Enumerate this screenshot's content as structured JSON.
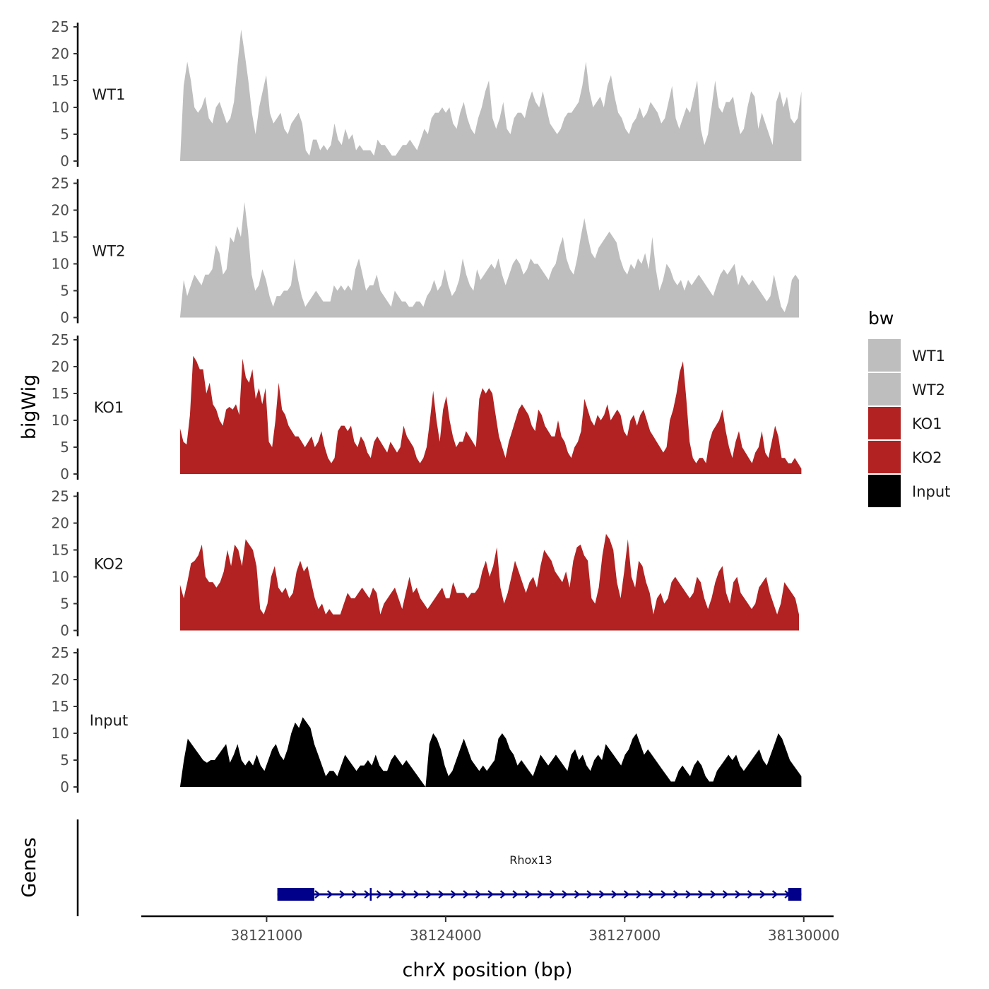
{
  "chart_data": {
    "type": "area",
    "chromosome": "chrX",
    "ylabel": "bigWig",
    "xlabel": "chrX position (bp)",
    "ylim": [
      0,
      25
    ],
    "yticks": [
      0,
      5,
      10,
      15,
      20,
      25
    ],
    "ytick_labels": [
      "0",
      "5",
      "10",
      "15",
      "20",
      "25"
    ],
    "xlim": [
      38118900,
      38130500
    ],
    "xticks": [
      38121000,
      38124000,
      38127000,
      38130000
    ],
    "xtick_labels": [
      "38121000",
      "38124000",
      "38127000",
      "38130000"
    ],
    "legend": {
      "title": "bw",
      "placement": "right",
      "entries": [
        {
          "label": "WT1",
          "color": "#bebebe"
        },
        {
          "label": "WT2",
          "color": "#bebebe"
        },
        {
          "label": "KO1",
          "color": "#b22222"
        },
        {
          "label": "KO2",
          "color": "#b22222"
        },
        {
          "label": "Input",
          "color": "#000000"
        }
      ]
    },
    "series": [
      {
        "name": "WT1",
        "color": "#bebebe",
        "x_start": 38119550,
        "x_end": 38129960,
        "values": [
          0,
          14,
          18.5,
          15,
          10,
          9,
          10,
          12,
          8,
          7,
          10,
          11,
          9,
          7,
          8,
          11,
          18,
          24.5,
          20,
          15,
          9,
          5,
          10,
          13,
          16,
          9,
          7,
          8,
          9,
          6,
          5,
          7,
          8,
          9,
          7,
          2,
          1,
          4,
          4,
          2,
          3,
          2,
          3,
          7,
          4,
          3,
          6,
          4,
          5,
          2,
          3,
          2,
          2,
          2,
          1,
          4,
          3,
          3,
          2,
          1,
          1,
          2,
          3,
          3,
          4,
          3,
          2,
          4,
          6,
          5,
          8,
          9,
          9,
          10,
          9,
          10,
          7,
          6,
          9,
          11,
          8,
          6,
          5,
          8,
          10,
          13,
          15,
          8,
          6,
          8,
          11,
          6,
          5,
          8,
          9,
          9,
          8,
          11,
          13,
          11,
          10,
          13,
          10,
          7,
          6,
          5,
          6,
          8,
          9,
          9,
          10,
          11,
          14,
          18.5,
          13,
          10,
          11,
          12,
          10,
          14,
          16,
          12,
          9,
          8,
          6,
          5,
          7,
          8,
          10,
          8,
          9,
          11,
          10,
          9,
          7,
          8,
          11,
          14,
          8,
          6,
          8,
          10,
          9,
          12,
          15,
          6,
          3,
          5,
          10,
          15,
          10,
          9,
          11,
          11,
          12,
          8,
          5,
          6,
          10,
          13,
          12,
          6,
          9,
          7,
          5,
          3,
          11,
          13,
          10,
          12,
          8,
          7,
          8,
          13
        ],
        "points_note": "values sampled evenly between x_start and x_end"
      },
      {
        "name": "WT2",
        "color": "#bebebe",
        "x_start": 38119550,
        "x_end": 38129920,
        "values": [
          0,
          7,
          4,
          6,
          8,
          7,
          6,
          8,
          8,
          9,
          13.5,
          12,
          8,
          9,
          15,
          14,
          17,
          15,
          21.5,
          16,
          8,
          5,
          6,
          9,
          7,
          4,
          2,
          4,
          4,
          5,
          5,
          6,
          11,
          7,
          4,
          2,
          3,
          4,
          5,
          4,
          3,
          3,
          3,
          6,
          5,
          6,
          5,
          6,
          5,
          9,
          11,
          8,
          5,
          6,
          6,
          8,
          5,
          4,
          3,
          2,
          5,
          4,
          3,
          3,
          2,
          2,
          3,
          3,
          2,
          4,
          5,
          7,
          5,
          6,
          9,
          6,
          4,
          5,
          7,
          11,
          8,
          6,
          5,
          9,
          7,
          8,
          9,
          10,
          9,
          11,
          8,
          6,
          8,
          10,
          11,
          10,
          8,
          9,
          11,
          10,
          10,
          9,
          8,
          7,
          9,
          10,
          13,
          15,
          11,
          9,
          8,
          11,
          15,
          18.5,
          15,
          12,
          11,
          13,
          14,
          15,
          16,
          15,
          14,
          11,
          9,
          8,
          10,
          9,
          11,
          10,
          12,
          9,
          15,
          9,
          5,
          7,
          10,
          9,
          7,
          6,
          7,
          5,
          7,
          6,
          7,
          8,
          7,
          6,
          5,
          4,
          6,
          8,
          9,
          8,
          9,
          10,
          6,
          8,
          7,
          6,
          7,
          6,
          5,
          4,
          3,
          4,
          8,
          5,
          2,
          1,
          3,
          7,
          8,
          7
        ]
      },
      {
        "name": "KO1",
        "color": "#b22222",
        "x_start": 38119550,
        "x_end": 38129960,
        "values": [
          8.5,
          6,
          5.5,
          11,
          22,
          21,
          19.5,
          19.5,
          15,
          17,
          13,
          12,
          10,
          9,
          12,
          12.5,
          12,
          13,
          11,
          21.5,
          18,
          17,
          19.5,
          14,
          16,
          13,
          16,
          6,
          5,
          10,
          17,
          12,
          11,
          9,
          8,
          7,
          7,
          6,
          5,
          6,
          7,
          5,
          6,
          8,
          5,
          3,
          2,
          3,
          8,
          9,
          9,
          8,
          9,
          6,
          5,
          7,
          6,
          4,
          3,
          6,
          7,
          6,
          5,
          4,
          6,
          5,
          4,
          5,
          9,
          7,
          6,
          5,
          3,
          2,
          3,
          5,
          10,
          15.5,
          10,
          6,
          12,
          14.5,
          10,
          7,
          5,
          6,
          6,
          8,
          7,
          6,
          5,
          14,
          16,
          15,
          16,
          15,
          11,
          7,
          5,
          3,
          6,
          8,
          10,
          12,
          13,
          12,
          11,
          9,
          8,
          12,
          11,
          9,
          8,
          7,
          7,
          10,
          7,
          6,
          4,
          3,
          5,
          6,
          8,
          14,
          12,
          10,
          9,
          11,
          10,
          11,
          13,
          10,
          11,
          12,
          11,
          8,
          7,
          10,
          11,
          9,
          11,
          12,
          10,
          8,
          7,
          6,
          5,
          4,
          5,
          10,
          12,
          15,
          19,
          21,
          14,
          6,
          3,
          2,
          3,
          3,
          2,
          6,
          8,
          9,
          10,
          12,
          8,
          5,
          3,
          6,
          8,
          5,
          4,
          3,
          2,
          4,
          5,
          8,
          4,
          3,
          6,
          9,
          7,
          3,
          3,
          2,
          2,
          3,
          2,
          1
        ]
      },
      {
        "name": "KO2",
        "color": "#b22222",
        "x_start": 38119550,
        "x_end": 38129920,
        "values": [
          8.5,
          6,
          9,
          12.5,
          13,
          14,
          16,
          10,
          9,
          9,
          8,
          9,
          11,
          15,
          12,
          16,
          15,
          12,
          17,
          16,
          15,
          12,
          4,
          3,
          5,
          10,
          12,
          8,
          7,
          8,
          6,
          7,
          11,
          13,
          11,
          12,
          9,
          6,
          4,
          5,
          3,
          4,
          3,
          3,
          3,
          5,
          7,
          6,
          6,
          7,
          8,
          7,
          6,
          8,
          7,
          3,
          5,
          6,
          7,
          8,
          6,
          4,
          7,
          10,
          7,
          8,
          6,
          5,
          4,
          5,
          6,
          7,
          8,
          6,
          6,
          9,
          7,
          7,
          7,
          6,
          7,
          7,
          8,
          11,
          13,
          10,
          12,
          15.5,
          8,
          5,
          7,
          10,
          13,
          11,
          9,
          7,
          9,
          10,
          8,
          12,
          15,
          14,
          13,
          11,
          10,
          9,
          11,
          8,
          13,
          15.5,
          16,
          14,
          13,
          6,
          5,
          8,
          14,
          18,
          17,
          15,
          9,
          6,
          11,
          17,
          10,
          8,
          13,
          12,
          9,
          7,
          3,
          6,
          7,
          5,
          6,
          9,
          10,
          9,
          8,
          7,
          6,
          7,
          10,
          9,
          6,
          4,
          6,
          9,
          11,
          12,
          7,
          5,
          9,
          10,
          7,
          6,
          5,
          4,
          5,
          8,
          9,
          10,
          7,
          5,
          3,
          5,
          9,
          8,
          7,
          6,
          3
        ]
      },
      {
        "name": "Input",
        "color": "#000000",
        "x_start": 38119550,
        "x_end": 38129960,
        "values": [
          0,
          5,
          9,
          8,
          7,
          6,
          5,
          4.5,
          5,
          5,
          6,
          7,
          8,
          4.5,
          6,
          8,
          5,
          4,
          5,
          4,
          6,
          4,
          3,
          5,
          7,
          8,
          6,
          5,
          7,
          10,
          12,
          11,
          13,
          12,
          11,
          8,
          6,
          4,
          2,
          3,
          3,
          2,
          4,
          6,
          5,
          4,
          3,
          4,
          4,
          5,
          4,
          6,
          4,
          3,
          3,
          5,
          6,
          5,
          4,
          5,
          4,
          3,
          2,
          1,
          0,
          8,
          10,
          9,
          7,
          4,
          2,
          3,
          5,
          7,
          9,
          7,
          5,
          4,
          3,
          4,
          3,
          4,
          5,
          9,
          10,
          9,
          7,
          6,
          4,
          5,
          4,
          3,
          2,
          4,
          6,
          5,
          4,
          5,
          6,
          5,
          4,
          3,
          6,
          7,
          5,
          6,
          4,
          3,
          5,
          6,
          5,
          8,
          7,
          6,
          5,
          4,
          6,
          7,
          9,
          10,
          8,
          6,
          7,
          6,
          5,
          4,
          3,
          2,
          1,
          1,
          3,
          4,
          3,
          2,
          4,
          5,
          4,
          2,
          1,
          1,
          3,
          4,
          5,
          6,
          5,
          6,
          4,
          3,
          4,
          5,
          6,
          7,
          5,
          4,
          6,
          8,
          10,
          9,
          7,
          5,
          4,
          3,
          2
        ]
      }
    ],
    "genes": {
      "track_label": "Genes",
      "items": [
        {
          "name": "Rhox13",
          "strand": "+",
          "start": 38121180,
          "end": 38129960,
          "color": "#00008b",
          "exons": [
            [
              38121180,
              38121800
            ],
            [
              38122730,
              38122760
            ],
            [
              38129740,
              38129960
            ]
          ],
          "thick_exons": [
            [
              38121220,
              38121800
            ],
            [
              38129740,
              38129940
            ]
          ]
        }
      ]
    }
  }
}
